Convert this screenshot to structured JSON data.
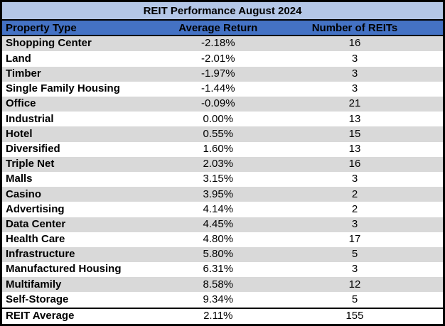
{
  "chart_data": {
    "type": "table",
    "title": "REIT Performance August 2024",
    "columns": [
      "Property Type",
      "Average Return",
      "Number of REITs"
    ],
    "rows": [
      [
        "Shopping Center",
        "-2.18%",
        16
      ],
      [
        "Land",
        "-2.01%",
        3
      ],
      [
        "Timber",
        "-1.97%",
        3
      ],
      [
        "Single Family Housing",
        "-1.44%",
        3
      ],
      [
        "Office",
        "-0.09%",
        21
      ],
      [
        "Industrial",
        "0.00%",
        13
      ],
      [
        "Hotel",
        "0.55%",
        15
      ],
      [
        "Diversified",
        "1.60%",
        13
      ],
      [
        "Triple Net",
        "2.03%",
        16
      ],
      [
        "Malls",
        "3.15%",
        3
      ],
      [
        "Casino",
        "3.95%",
        2
      ],
      [
        "Advertising",
        "4.14%",
        2
      ],
      [
        "Data Center",
        "4.45%",
        3
      ],
      [
        "Health Care",
        "4.80%",
        17
      ],
      [
        "Infrastructure",
        "5.80%",
        5
      ],
      [
        "Manufactured Housing",
        "6.31%",
        3
      ],
      [
        "Multifamily",
        "8.58%",
        12
      ],
      [
        "Self-Storage",
        "9.34%",
        5
      ]
    ],
    "summary_row": [
      "REIT Average",
      "2.11%",
      155
    ],
    "average_return_pct": [
      -2.18,
      -2.01,
      -1.97,
      -1.44,
      -0.09,
      0.0,
      0.55,
      1.6,
      2.03,
      3.15,
      3.95,
      4.14,
      4.45,
      4.8,
      5.8,
      6.31,
      8.58,
      9.34
    ],
    "number_of_reits": [
      16,
      3,
      3,
      3,
      21,
      13,
      15,
      13,
      16,
      3,
      2,
      2,
      3,
      17,
      5,
      3,
      12,
      5
    ],
    "layout_hints": {
      "row_striping": "odd rows shaded, starting with first data row",
      "column_alignment": [
        "left",
        "center",
        "center"
      ],
      "summary_row_separated_by_top_border": true
    }
  },
  "colors": {
    "title_background": "#B4C7E7",
    "header_background": "#4472C4",
    "shaded_row_background": "#D9D9D9",
    "row_background": "#FFFFFF",
    "border": "#000000",
    "text": "#000000"
  }
}
